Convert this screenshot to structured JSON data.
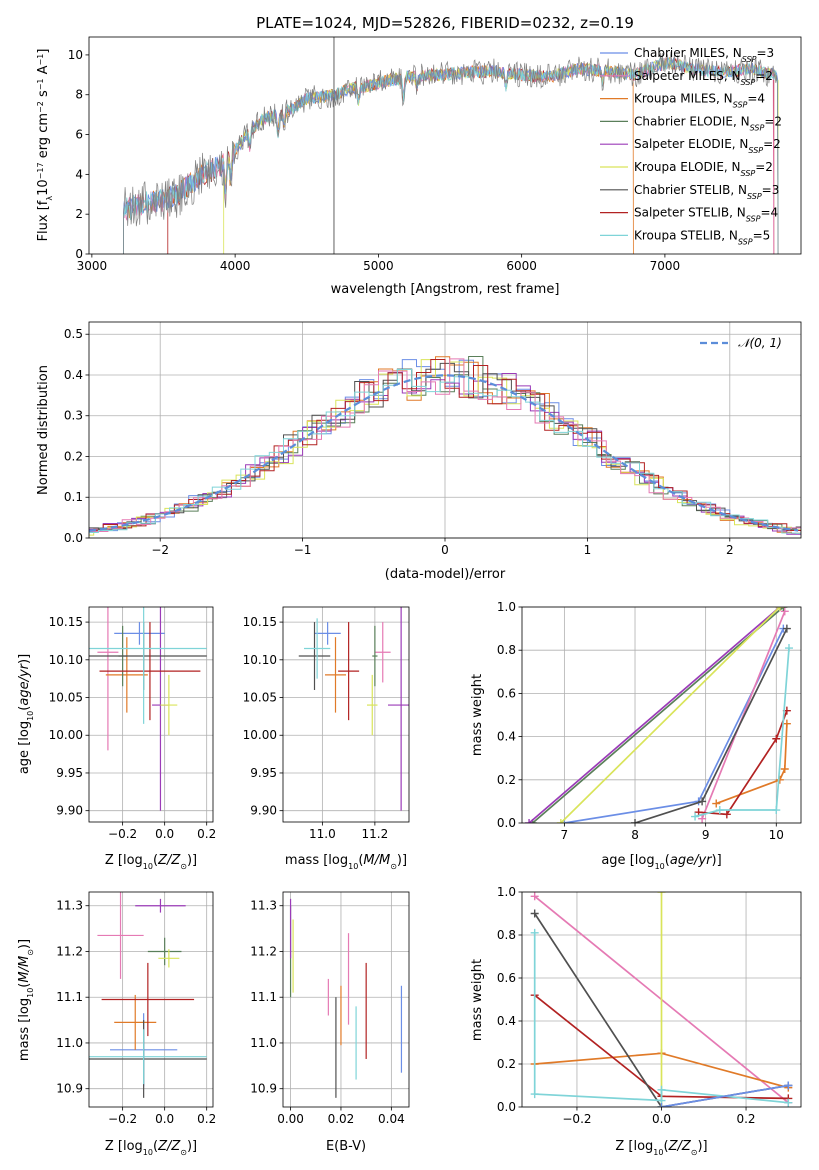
{
  "title": "PLATE=1024, MJD=52826, FIBERID=0232, z=0.19",
  "colors": {
    "s1": "#6b8ee6",
    "s2": "#e07a28",
    "s3": "#5a7f5a",
    "s4": "#9b3bb8",
    "s5": "#d9e45a",
    "s6": "#505050",
    "s7": "#b22222",
    "s8": "#e57ab4",
    "s9": "#7fd4d8"
  },
  "chart_data": [
    {
      "type": "line",
      "panel": "spectrum",
      "xlabel": "wavelength [Angstrom, rest frame]",
      "ylabel": "Flux [f_λ 10^-17 erg cm^-2 s^-1 A^-1]",
      "xlim": [
        2980,
        7950
      ],
      "ylim": [
        0,
        10.9
      ],
      "xticks": [
        "3000",
        "4000",
        "5000",
        "6000",
        "7000"
      ],
      "yticks": [
        "0",
        "2",
        "4",
        "6",
        "8",
        "10"
      ],
      "grid": false,
      "legend_position": "right",
      "legend": [
        {
          "label": "Chabrier MILES, N_SSP=3",
          "color": "#6b8ee6"
        },
        {
          "label": "Salpeter MILES, N_SSP=2",
          "color": "#e57ab4"
        },
        {
          "label": "Kroupa MILES, N_SSP=4",
          "color": "#e07a28"
        },
        {
          "label": "Chabrier ELODIE, N_SSP=2",
          "color": "#5a7f5a"
        },
        {
          "label": "Salpeter ELODIE, N_SSP=2",
          "color": "#9b3bb8"
        },
        {
          "label": "Kroupa ELODIE, N_SSP=2",
          "color": "#d9e45a"
        },
        {
          "label": "Chabrier STELIB, N_SSP=3",
          "color": "#505050"
        },
        {
          "label": "Salpeter STELIB, N_SSP=4",
          "color": "#b22222"
        },
        {
          "label": "Kroupa STELIB, N_SSP=5",
          "color": "#7fd4d8"
        }
      ],
      "continuum": {
        "x": [
          3220,
          3300,
          3400,
          3500,
          3600,
          3700,
          3800,
          3900,
          4000,
          4100,
          4200,
          4300,
          4400,
          4500,
          4600,
          4700,
          4800,
          4900,
          5000,
          5200,
          5400,
          5600,
          5800,
          6000,
          6200,
          6400,
          6600,
          6800,
          7000,
          7200,
          7400,
          7600,
          7790
        ],
        "y": [
          2.2,
          2.4,
          2.6,
          2.7,
          3.0,
          3.6,
          4.1,
          4.4,
          5.2,
          6.2,
          6.8,
          7.0,
          7.3,
          7.8,
          7.9,
          8.0,
          8.3,
          8.4,
          8.6,
          8.9,
          9.0,
          9.1,
          9.2,
          9.0,
          8.9,
          9.3,
          9.2,
          9.0,
          9.6,
          9.3,
          9.1,
          9.3,
          8.9
        ]
      },
      "spike_x": 4690,
      "series_cutoffs": [
        {
          "color": "#b22222",
          "start": 3530,
          "end": 7760
        },
        {
          "color": "#e07a28",
          "start": 3220,
          "end": 6780
        },
        {
          "color": "#e57ab4",
          "start": 3220,
          "end": 7760
        },
        {
          "color": "#d9e45a",
          "start": 3920,
          "end": 7790
        },
        {
          "color": "#6b8ee6",
          "start": 3220,
          "end": 7790
        },
        {
          "color": "#7fd4d8",
          "start": 3220,
          "end": 7790
        },
        {
          "color": "#808080",
          "start": 3220,
          "end": 7790
        }
      ]
    },
    {
      "type": "line",
      "panel": "residual-histogram",
      "xlabel": "(data-model)/error",
      "ylabel": "Normed distribution",
      "xlim": [
        -2.5,
        2.5
      ],
      "ylim": [
        0,
        0.53
      ],
      "xticks": [
        "−2",
        "−1",
        "0",
        "1",
        "2"
      ],
      "yticks": [
        "0.0",
        "0.1",
        "0.2",
        "0.3",
        "0.4",
        "0.5"
      ],
      "grid": true,
      "legend_position": "top-right",
      "legend": [
        {
          "label": "𝒩(0, 1)",
          "color": "#5b8dd9"
        }
      ],
      "bin_width": 0.1
    },
    {
      "type": "scatter",
      "panel": "age-vs-Z",
      "xlabel": "Z [log10(Z/Z⊙)]",
      "ylabel": "age [log10(age/yr)]",
      "xlim": [
        -0.36,
        0.23
      ],
      "ylim": [
        9.885,
        10.17
      ],
      "xticks": [
        "−0.2",
        "0.0",
        "0.2"
      ],
      "yticks": [
        "9.90",
        "9.95",
        "10.00",
        "10.05",
        "10.10",
        "10.15"
      ],
      "grid": true,
      "points": [
        {
          "color": "#6b8ee6",
          "x": -0.12,
          "xerr": 0.12,
          "y": 10.135,
          "yerr": 0.015
        },
        {
          "color": "#e57ab4",
          "x": -0.27,
          "xerr": 0.05,
          "y": 10.11,
          "yerr": 0.13
        },
        {
          "color": "#e07a28",
          "x": -0.18,
          "xerr": 0.1,
          "y": 10.08,
          "yerr": 0.05
        },
        {
          "color": "#5a7f5a",
          "x": -0.2,
          "xerr": 0.02,
          "y": 10.105,
          "yerr": 0.04
        },
        {
          "color": "#9b3bb8",
          "x": -0.02,
          "xerr": 0.04,
          "y": 10.04,
          "yerr": 0.14
        },
        {
          "color": "#d9e45a",
          "x": 0.02,
          "xerr": 0.04,
          "y": 10.04,
          "yerr": 0.04
        },
        {
          "color": "#505050",
          "x": -0.1,
          "xerr": 0.3,
          "y": 10.105,
          "yerr": 0.045
        },
        {
          "color": "#b22222",
          "x": -0.07,
          "xerr": 0.24,
          "y": 10.085,
          "yerr": 0.065
        },
        {
          "color": "#7fd4d8",
          "x": -0.1,
          "xerr": 0.3,
          "y": 10.115,
          "yerr": 0.1
        }
      ]
    },
    {
      "type": "scatter",
      "panel": "age-vs-mass",
      "xlabel": "mass [log10(M/M⊙)]",
      "ylabel": "",
      "xlim": [
        10.85,
        11.33
      ],
      "ylim": [
        9.885,
        10.17
      ],
      "xticks": [
        "11.0",
        "11.2"
      ],
      "yticks": [
        "9.90",
        "9.95",
        "10.00",
        "10.05",
        "10.10",
        "10.15"
      ],
      "grid": true,
      "points": [
        {
          "color": "#6b8ee6",
          "x": 11.02,
          "xerr": 0.05,
          "y": 10.135,
          "yerr": 0.015
        },
        {
          "color": "#e57ab4",
          "x": 11.23,
          "xerr": 0.03,
          "y": 10.11,
          "yerr": 0.04
        },
        {
          "color": "#e07a28",
          "x": 11.05,
          "xerr": 0.04,
          "y": 10.08,
          "yerr": 0.05
        },
        {
          "color": "#5a7f5a",
          "x": 11.2,
          "xerr": 0.01,
          "y": 10.105,
          "yerr": 0.04
        },
        {
          "color": "#9b3bb8",
          "x": 11.3,
          "xerr": 0.05,
          "y": 10.04,
          "yerr": 0.14
        },
        {
          "color": "#d9e45a",
          "x": 11.19,
          "xerr": 0.02,
          "y": 10.04,
          "yerr": 0.04
        },
        {
          "color": "#505050",
          "x": 10.97,
          "xerr": 0.06,
          "y": 10.105,
          "yerr": 0.045
        },
        {
          "color": "#b22222",
          "x": 11.1,
          "xerr": 0.04,
          "y": 10.085,
          "yerr": 0.065
        },
        {
          "color": "#7fd4d8",
          "x": 10.98,
          "xerr": 0.05,
          "y": 10.115,
          "yerr": 0.04
        }
      ]
    },
    {
      "type": "line",
      "panel": "mass-weight-vs-age",
      "xlabel": "age [log10(age/yr)]",
      "ylabel": "mass weight",
      "xlim": [
        6.4,
        10.35
      ],
      "ylim": [
        0,
        1
      ],
      "xticks": [
        "7",
        "8",
        "9",
        "10"
      ],
      "yticks": [
        "0.0",
        "0.2",
        "0.4",
        "0.6",
        "0.8",
        "1.0"
      ],
      "grid": true,
      "series": [
        {
          "color": "#6b8ee6",
          "x": [
            7.0,
            8.9,
            10.1
          ],
          "y": [
            0.0,
            0.1,
            0.9
          ]
        },
        {
          "color": "#e57ab4",
          "x": [
            8.95,
            10.12
          ],
          "y": [
            0.02,
            0.98
          ]
        },
        {
          "color": "#e07a28",
          "x": [
            9.15,
            10.05,
            10.12,
            10.15
          ],
          "y": [
            0.09,
            0.2,
            0.25,
            0.46
          ]
        },
        {
          "color": "#5a7f5a",
          "x": [
            6.55,
            10.1
          ],
          "y": [
            0.0,
            1.0
          ]
        },
        {
          "color": "#9b3bb8",
          "x": [
            6.5,
            10.05
          ],
          "y": [
            0.0,
            1.0
          ]
        },
        {
          "color": "#d9e45a",
          "x": [
            6.95,
            10.05
          ],
          "y": [
            0.0,
            1.0
          ]
        },
        {
          "color": "#505050",
          "x": [
            8.0,
            8.95,
            10.15
          ],
          "y": [
            0.0,
            0.1,
            0.9
          ]
        },
        {
          "color": "#b22222",
          "x": [
            8.9,
            9.3,
            10.0,
            10.15
          ],
          "y": [
            0.05,
            0.04,
            0.39,
            0.52
          ]
        },
        {
          "color": "#7fd4d8",
          "x": [
            8.85,
            9.2,
            10.0,
            10.18
          ],
          "y": [
            0.03,
            0.06,
            0.06,
            0.81
          ]
        }
      ]
    },
    {
      "type": "scatter",
      "panel": "mass-vs-Z",
      "xlabel": "Z [log10(Z/Z⊙)]",
      "ylabel": "mass [log10(M/M⊙)]",
      "xlim": [
        -0.36,
        0.23
      ],
      "ylim": [
        10.86,
        11.33
      ],
      "xticks": [
        "−0.2",
        "0.0",
        "0.2"
      ],
      "yticks": [
        "10.9",
        "11.0",
        "11.1",
        "11.2",
        "11.3"
      ],
      "grid": true,
      "points": [
        {
          "color": "#6b8ee6",
          "x": -0.1,
          "xerr": 0.16,
          "y": 10.985,
          "yerr": 0.08
        },
        {
          "color": "#e57ab4",
          "x": -0.21,
          "xerr": 0.11,
          "y": 11.235,
          "yerr": 0.095
        },
        {
          "color": "#e07a28",
          "x": -0.14,
          "xerr": 0.1,
          "y": 11.045,
          "yerr": 0.06
        },
        {
          "color": "#5a7f5a",
          "x": 0.0,
          "xerr": 0.08,
          "y": 11.2,
          "yerr": 0.03
        },
        {
          "color": "#9b3bb8",
          "x": -0.02,
          "xerr": 0.12,
          "y": 11.3,
          "yerr": 0.015
        },
        {
          "color": "#d9e45a",
          "x": 0.02,
          "xerr": 0.05,
          "y": 11.185,
          "yerr": 0.02
        },
        {
          "color": "#505050",
          "x": -0.1,
          "xerr": 0.3,
          "y": 10.965,
          "yerr": 0.085
        },
        {
          "color": "#b22222",
          "x": -0.08,
          "xerr": 0.22,
          "y": 11.095,
          "yerr": 0.08
        },
        {
          "color": "#7fd4d8",
          "x": -0.1,
          "xerr": 0.3,
          "y": 10.97,
          "yerr": 0.06
        }
      ]
    },
    {
      "type": "scatter",
      "panel": "mass-vs-EBV",
      "xlabel": "E(B-V)",
      "ylabel": "",
      "xlim": [
        -0.003,
        0.047
      ],
      "ylim": [
        10.86,
        11.33
      ],
      "xticks": [
        "0.00",
        "0.02",
        "0.04"
      ],
      "yticks": [
        "10.9",
        "11.0",
        "11.1",
        "11.2",
        "11.3"
      ],
      "grid": true,
      "points": [
        {
          "color": "#6b8ee6",
          "x": 0.044,
          "y": 11.03,
          "yerr": 0.095
        },
        {
          "color": "#e57ab4",
          "x": 0.023,
          "y": 11.14,
          "yerr": 0.1
        },
        {
          "color": "#e07a28",
          "x": 0.02,
          "y": 11.06,
          "yerr": 0.065
        },
        {
          "color": "#5a7f5a",
          "x": 0.0,
          "y": 11.2,
          "yerr": 0.1
        },
        {
          "color": "#9b3bb8",
          "x": 0.0,
          "y": 11.25,
          "yerr": 0.065
        },
        {
          "color": "#d9e45a",
          "x": 0.001,
          "y": 11.19,
          "yerr": 0.08
        },
        {
          "color": "#505050",
          "x": 0.018,
          "y": 10.99,
          "yerr": 0.11
        },
        {
          "color": "#b22222",
          "x": 0.03,
          "y": 11.07,
          "yerr": 0.105
        },
        {
          "color": "#7fd4d8",
          "x": 0.026,
          "y": 11.0,
          "yerr": 0.08
        },
        {
          "color": "#e57ab4",
          "x": 0.015,
          "y": 11.1,
          "yerr": 0.04
        }
      ]
    },
    {
      "type": "line",
      "panel": "mass-weight-vs-Z",
      "xlabel": "Z [log10(Z/Z⊙)]",
      "ylabel": "mass weight",
      "xlim": [
        -0.33,
        0.33
      ],
      "ylim": [
        0,
        1
      ],
      "xticks": [
        "−0.2",
        "0.0",
        "0.2"
      ],
      "yticks": [
        "0.0",
        "0.2",
        "0.4",
        "0.6",
        "0.8",
        "1.0"
      ],
      "grid": true,
      "series": [
        {
          "color": "#e57ab4",
          "x": [
            -0.3,
            0.3
          ],
          "y": [
            0.98,
            0.02
          ]
        },
        {
          "color": "#e07a28",
          "x": [
            -0.3,
            0.0,
            0.3
          ],
          "y": [
            0.2,
            0.25,
            0.09
          ]
        },
        {
          "color": "#b22222",
          "x": [
            -0.3,
            0.0,
            0.3
          ],
          "y": [
            0.52,
            0.05,
            0.04
          ]
        },
        {
          "color": "#505050",
          "x": [
            -0.3,
            0.0,
            0.3
          ],
          "y": [
            0.9,
            0.0,
            0.1
          ]
        },
        {
          "color": "#d9e45a",
          "x": [
            0.0,
            0.0
          ],
          "y": [
            0.0,
            1.0
          ]
        },
        {
          "color": "#7fd4d8",
          "x": [
            -0.3,
            -0.3,
            0.0,
            0.0,
            0.3
          ],
          "y": [
            0.81,
            0.06,
            0.03,
            0.08,
            0.02
          ]
        },
        {
          "color": "#6b8ee6",
          "x": [
            0.0,
            0.3
          ],
          "y": [
            0.0,
            0.1
          ]
        }
      ]
    }
  ]
}
